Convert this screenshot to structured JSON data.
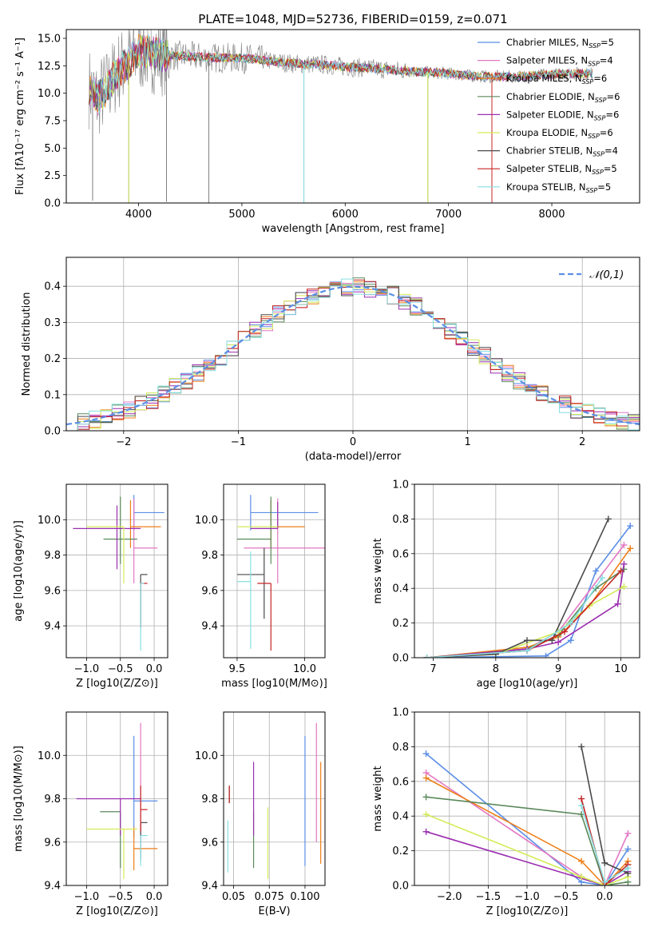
{
  "figure": {
    "title": "PLATE=1048, MJD=52736, FIBERID=0159, z=0.071"
  },
  "colors": {
    "Chabrier MILES": "#5b8ee6",
    "Salpeter MILES": "#e377c2",
    "Kroupa MILES": "#ee7f1a",
    "Chabrier ELODIE": "#5b8a5b",
    "Salpeter ELODIE": "#9b2db0",
    "Kroupa ELODIE": "#d4ec58",
    "Chabrier STELIB": "#4a4a4a",
    "Salpeter STELIB": "#c62424",
    "Kroupa STELIB": "#86dfe2",
    "data": "#808080"
  },
  "chart_data": [
    {
      "id": "spectrum",
      "type": "line",
      "title": "PLATE=1048, MJD=52736, FIBERID=0159, z=0.071",
      "xlabel": "wavelength [Angstrom, rest frame]",
      "ylabel": "Flux [fλ10⁻¹⁷ erg cm⁻² s⁻¹ A⁻¹]",
      "xlim": [
        3300,
        8850
      ],
      "ylim": [
        0,
        15.8
      ],
      "xticks": [
        4000,
        5000,
        6000,
        7000,
        8000
      ],
      "yticks": [
        0.0,
        2.5,
        5.0,
        7.5,
        10.0,
        12.5,
        15.0
      ],
      "legend_position": "top-right",
      "legend": [
        "Chabrier MILES, N_SSP=5",
        "Salpeter MILES, N_SSP=4",
        "Kroupa MILES, N_SSP=6",
        "Chabrier ELODIE, N_SSP=6",
        "Salpeter ELODIE, N_SSP=6",
        "Kroupa ELODIE, N_SSP=6",
        "Chabrier STELIB, N_SSP=4",
        "Salpeter STELIB, N_SSP=5",
        "Kroupa STELIB, N_SSP=5"
      ],
      "continuum": {
        "x": [
          3520,
          3600,
          3700,
          3800,
          3900,
          4000,
          4100,
          4200,
          4400,
          4600,
          4800,
          5000,
          5200,
          5500,
          5800,
          6000,
          6200,
          6500,
          6800,
          7000,
          7200,
          7400,
          7600,
          7800,
          8000,
          8200,
          8400
        ],
        "y": [
          10.5,
          9.5,
          10.5,
          12.0,
          12.8,
          13.8,
          13.8,
          13.5,
          13.4,
          13.3,
          13.2,
          13.2,
          13.0,
          12.7,
          12.6,
          12.4,
          12.3,
          12.1,
          11.9,
          11.8,
          11.6,
          11.5,
          11.5,
          11.6,
          11.7,
          11.8,
          11.8
        ]
      },
      "dips": [
        {
          "x": 3555,
          "y": 0.2
        },
        {
          "x": 3905,
          "y": 0.0
        },
        {
          "x": 4270,
          "y": 0.1
        },
        {
          "x": 4680,
          "y": 0.0
        },
        {
          "x": 5600,
          "y": 0.1
        },
        {
          "x": 6800,
          "y": 0.1
        },
        {
          "x": 7420,
          "y": 0.0
        }
      ]
    },
    {
      "id": "residuals",
      "type": "histogram",
      "xlabel": "(data-model)/error",
      "ylabel": "Normed distribution",
      "xlim": [
        -2.5,
        2.5
      ],
      "ylim": [
        0,
        0.48
      ],
      "xticks": [
        -2,
        -1,
        0,
        1,
        2
      ],
      "yticks": [
        0.0,
        0.1,
        0.2,
        0.3,
        0.4
      ],
      "legend": [
        "𝒩(0,1)"
      ],
      "legend_position": "top-right",
      "reference_curve": "normal(0,1)"
    },
    {
      "id": "age-vs-z",
      "type": "errorbar",
      "xlabel": "Z [log10(Z/Z⊙)]",
      "ylabel": "age  [log10(age/yr)]",
      "xlim": [
        -1.3,
        0.2
      ],
      "ylim": [
        9.22,
        10.2
      ],
      "xticks": [
        -1.0,
        -0.5,
        0.0
      ],
      "yticks": [
        9.4,
        9.6,
        9.8,
        10.0
      ],
      "points": [
        {
          "model": "Chabrier MILES",
          "x": -0.3,
          "xerr": [
            0.0,
            0.45
          ],
          "y": 10.04,
          "yerr": [
            0.1,
            0.1
          ]
        },
        {
          "model": "Salpeter MILES",
          "x": -0.3,
          "xerr": [
            0.0,
            0.35
          ],
          "y": 9.84,
          "yerr": [
            0.2,
            0.28
          ]
        },
        {
          "model": "Kroupa MILES",
          "x": -0.35,
          "xerr": [
            0.0,
            0.45
          ],
          "y": 9.96,
          "yerr": [
            0.12,
            0.15
          ]
        },
        {
          "model": "Chabrier ELODIE",
          "x": -0.5,
          "xerr": [
            0.25,
            0.25
          ],
          "y": 9.89,
          "yerr": [
            0.14,
            0.24
          ]
        },
        {
          "model": "Salpeter ELODIE",
          "x": -0.55,
          "xerr": [
            0.65,
            0.35
          ],
          "y": 9.95,
          "yerr": [
            0.23,
            0.13
          ]
        },
        {
          "model": "Kroupa ELODIE",
          "x": -0.45,
          "xerr": [
            0.55,
            0.0
          ],
          "y": 9.96,
          "yerr": [
            0.32,
            0.0
          ]
        },
        {
          "model": "Chabrier STELIB",
          "x": -0.2,
          "xerr": [
            0.0,
            0.1
          ],
          "y": 9.69,
          "yerr": [
            0.3,
            0.0
          ]
        },
        {
          "model": "Salpeter STELIB",
          "x": -0.2,
          "xerr": [
            0.0,
            0.1
          ],
          "y": 9.64,
          "yerr": [
            0.25,
            0.0
          ]
        },
        {
          "model": "Kroupa STELIB",
          "x": -0.2,
          "xerr": [
            0.0,
            0.05
          ],
          "y": 9.64,
          "yerr": [
            0.38,
            0.0
          ]
        }
      ]
    },
    {
      "id": "age-vs-mass",
      "type": "errorbar",
      "xlabel": "mass [log10(M/M⊙)]",
      "ylabel": "",
      "xlim": [
        9.4,
        10.15
      ],
      "ylim": [
        9.22,
        10.2
      ],
      "xticks": [
        9.5,
        10.0
      ],
      "yticks": [
        9.4,
        9.6,
        9.8,
        10.0
      ],
      "points": [
        {
          "model": "Chabrier MILES",
          "x": 9.6,
          "xerr": [
            0.0,
            0.5
          ],
          "y": 10.04,
          "yerr": [
            0.1,
            0.1
          ]
        },
        {
          "model": "Salpeter MILES",
          "x": 9.8,
          "xerr": [
            0.25,
            0.35
          ],
          "y": 9.84,
          "yerr": [
            0.2,
            0.28
          ]
        },
        {
          "model": "Kroupa MILES",
          "x": 9.75,
          "xerr": [
            0.0,
            0.25
          ],
          "y": 9.96,
          "yerr": [
            0.12,
            0.15
          ]
        },
        {
          "model": "Chabrier ELODIE",
          "x": 9.75,
          "xerr": [
            0.25,
            0.0
          ],
          "y": 9.89,
          "yerr": [
            0.14,
            0.24
          ]
        },
        {
          "model": "Salpeter ELODIE",
          "x": 9.8,
          "xerr": [
            0.2,
            0.0
          ],
          "y": 9.95,
          "yerr": [
            0.0,
            0.15
          ]
        },
        {
          "model": "Kroupa ELODIE",
          "x": 9.5,
          "xerr": [
            0.0,
            0.3
          ],
          "y": 9.96,
          "yerr": [
            0.0,
            0.0
          ]
        },
        {
          "model": "Chabrier STELIB",
          "x": 9.7,
          "xerr": [
            0.2,
            0.0
          ],
          "y": 9.69,
          "yerr": [
            0.25,
            0.15
          ]
        },
        {
          "model": "Salpeter STELIB",
          "x": 9.75,
          "xerr": [
            0.1,
            0.0
          ],
          "y": 9.64,
          "yerr": [
            0.38,
            0.0
          ]
        },
        {
          "model": "Kroupa STELIB",
          "x": 9.6,
          "xerr": [
            0.1,
            0.0
          ],
          "y": 9.65,
          "yerr": [
            0.38,
            0.17
          ]
        }
      ]
    },
    {
      "id": "massweight-vs-age",
      "type": "line",
      "xlabel": "age  [log10(age/yr)]",
      "ylabel": "mass weight",
      "xlim": [
        6.7,
        10.3
      ],
      "ylim": [
        0.0,
        1.0
      ],
      "xticks": [
        7,
        8,
        9,
        10
      ],
      "yticks": [
        0.0,
        0.2,
        0.4,
        0.6,
        0.8,
        1.0
      ],
      "series": [
        {
          "model": "Chabrier MILES",
          "x": [
            6.9,
            8.8,
            9.2,
            9.6,
            10.15
          ],
          "y": [
            0.0,
            0.01,
            0.1,
            0.5,
            0.76
          ]
        },
        {
          "model": "Salpeter MILES",
          "x": [
            6.9,
            8.5,
            9.0,
            10.05
          ],
          "y": [
            0.0,
            0.05,
            0.15,
            0.65
          ]
        },
        {
          "model": "Kroupa MILES",
          "x": [
            6.9,
            8.5,
            9.0,
            9.5,
            10.15
          ],
          "y": [
            0.0,
            0.06,
            0.12,
            0.3,
            0.63
          ]
        },
        {
          "model": "Chabrier ELODIE",
          "x": [
            6.9,
            8.5,
            9.0,
            9.6,
            10.05
          ],
          "y": [
            0.0,
            0.05,
            0.13,
            0.4,
            0.51
          ]
        },
        {
          "model": "Salpeter ELODIE",
          "x": [
            6.9,
            8.5,
            9.0,
            9.95,
            10.05
          ],
          "y": [
            0.0,
            0.05,
            0.09,
            0.31,
            0.54
          ]
        },
        {
          "model": "Kroupa ELODIE",
          "x": [
            6.9,
            8.0,
            9.0,
            9.5,
            10.05
          ],
          "y": [
            0.0,
            0.02,
            0.15,
            0.3,
            0.41
          ]
        },
        {
          "model": "Chabrier STELIB",
          "x": [
            6.9,
            8.0,
            8.5,
            8.9,
            9.8
          ],
          "y": [
            0.0,
            0.02,
            0.1,
            0.1,
            0.8
          ]
        },
        {
          "model": "Salpeter STELIB",
          "x": [
            6.9,
            8.5,
            9.1,
            10.0
          ],
          "y": [
            0.0,
            0.04,
            0.15,
            0.5
          ]
        },
        {
          "model": "Kroupa STELIB",
          "x": [
            6.9,
            8.5,
            9.2,
            9.7
          ],
          "y": [
            0.0,
            0.04,
            0.2,
            0.46
          ]
        }
      ]
    },
    {
      "id": "mass-vs-z",
      "type": "errorbar",
      "xlabel": "Z [log10(Z/Z⊙)]",
      "ylabel": "mass [log10(M/M⊙)]",
      "xlim": [
        -1.3,
        0.2
      ],
      "ylim": [
        9.4,
        10.2
      ],
      "xticks": [
        -1.0,
        -0.5,
        0.0
      ],
      "yticks": [
        9.4,
        9.6,
        9.8,
        10.0
      ],
      "points": [
        {
          "model": "Chabrier MILES",
          "x": -0.3,
          "xerr": [
            0.0,
            0.35
          ],
          "y": 9.79,
          "yerr": [
            0.17,
            0.3
          ]
        },
        {
          "model": "Salpeter MILES",
          "x": -0.2,
          "xerr": [
            0.0,
            0.0
          ],
          "y": 9.8,
          "yerr": [
            0.2,
            0.35
          ]
        },
        {
          "model": "Kroupa MILES",
          "x": -0.3,
          "xerr": [
            0.0,
            0.35
          ],
          "y": 9.57,
          "yerr": [
            0.1,
            0.1
          ]
        },
        {
          "model": "Chabrier ELODIE",
          "x": -0.5,
          "xerr": [
            0.3,
            0.0
          ],
          "y": 9.74,
          "yerr": [
            0.26,
            0.0
          ]
        },
        {
          "model": "Salpeter ELODIE",
          "x": -0.5,
          "xerr": [
            0.65,
            0.3
          ],
          "y": 9.8,
          "yerr": [
            0.17,
            0.0
          ]
        },
        {
          "model": "Kroupa ELODIE",
          "x": -0.45,
          "xerr": [
            0.55,
            0.2
          ],
          "y": 9.66,
          "yerr": [
            0.23,
            0.0
          ]
        },
        {
          "model": "Chabrier STELIB",
          "x": -0.2,
          "xerr": [
            0.0,
            0.1
          ],
          "y": 9.69,
          "yerr": [
            0.17,
            0.0
          ]
        },
        {
          "model": "Salpeter STELIB",
          "x": -0.2,
          "xerr": [
            0.0,
            0.1
          ],
          "y": 9.75,
          "yerr": [
            0.1,
            0.11
          ]
        },
        {
          "model": "Kroupa STELIB",
          "x": -0.2,
          "xerr": [
            0.0,
            0.1
          ],
          "y": 9.63,
          "yerr": [
            0.14,
            0.0
          ]
        }
      ]
    },
    {
      "id": "mass-vs-ebv",
      "type": "errorbar",
      "xlabel": "E(B-V)",
      "ylabel": "",
      "xlim": [
        0.043,
        0.114
      ],
      "ylim": [
        9.4,
        10.2
      ],
      "xticks": [
        0.05,
        0.075,
        0.1
      ],
      "yticks": [
        9.4,
        9.6,
        9.8,
        10.0
      ],
      "points": [
        {
          "model": "Chabrier MILES",
          "x": 0.1,
          "y": 9.79,
          "yerr": [
            0.3,
            0.3
          ]
        },
        {
          "model": "Salpeter MILES",
          "x": 0.108,
          "y": 9.8,
          "yerr": [
            0.2,
            0.35
          ]
        },
        {
          "model": "Kroupa MILES",
          "x": 0.111,
          "y": 9.7,
          "yerr": [
            0.2,
            0.27
          ]
        },
        {
          "model": "Chabrier ELODIE",
          "x": 0.064,
          "y": 9.74,
          "yerr": [
            0.26,
            0.0
          ]
        },
        {
          "model": "Salpeter ELODIE",
          "x": 0.064,
          "y": 9.8,
          "yerr": [
            0.17,
            0.17
          ]
        },
        {
          "model": "Kroupa ELODIE",
          "x": 0.074,
          "y": 9.6,
          "yerr": [
            0.17,
            0.16
          ]
        },
        {
          "model": "Chabrier STELIB",
          "x": 0.047,
          "y": 9.8,
          "yerr": [
            0.02,
            0.06
          ]
        },
        {
          "model": "Salpeter STELIB",
          "x": 0.047,
          "y": 9.8,
          "yerr": [
            0.02,
            0.06
          ]
        },
        {
          "model": "Kroupa STELIB",
          "x": 0.046,
          "y": 9.7,
          "yerr": [
            0.24,
            0.0
          ]
        }
      ]
    },
    {
      "id": "massweight-vs-z",
      "type": "line",
      "xlabel": "Z [log10(Z/Z⊙)]",
      "ylabel": "mass weight",
      "xlim": [
        -2.45,
        0.45
      ],
      "ylim": [
        0.0,
        1.0
      ],
      "xticks": [
        -2.0,
        -1.5,
        -1.0,
        -0.5,
        0.0
      ],
      "yticks": [
        0.0,
        0.2,
        0.4,
        0.6,
        0.8,
        1.0
      ],
      "series": [
        {
          "model": "Chabrier MILES",
          "x": [
            -2.3,
            -0.3,
            0.0,
            0.3
          ],
          "y": [
            0.76,
            0.02,
            0.0,
            0.21
          ]
        },
        {
          "model": "Salpeter MILES",
          "x": [
            -2.3,
            -0.3,
            0.0,
            0.3
          ],
          "y": [
            0.65,
            0.05,
            0.0,
            0.3
          ]
        },
        {
          "model": "Kroupa MILES",
          "x": [
            -2.3,
            -0.3,
            0.0,
            0.3
          ],
          "y": [
            0.62,
            0.14,
            0.0,
            0.14
          ]
        },
        {
          "model": "Chabrier ELODIE",
          "x": [
            -2.3,
            -0.3,
            0.0,
            0.3
          ],
          "y": [
            0.51,
            0.41,
            0.0,
            0.02
          ]
        },
        {
          "model": "Salpeter ELODIE",
          "x": [
            -2.3,
            0.0,
            0.3
          ],
          "y": [
            0.31,
            0.0,
            0.08
          ]
        },
        {
          "model": "Kroupa ELODIE",
          "x": [
            -2.3,
            -0.3,
            0.0,
            0.3
          ],
          "y": [
            0.41,
            0.05,
            0.0,
            0.05
          ]
        },
        {
          "model": "Chabrier STELIB",
          "x": [
            -0.3,
            0.0,
            0.3
          ],
          "y": [
            0.8,
            0.13,
            0.07
          ]
        },
        {
          "model": "Salpeter STELIB",
          "x": [
            -0.3,
            0.0,
            0.3
          ],
          "y": [
            0.5,
            0.0,
            0.12
          ]
        },
        {
          "model": "Kroupa STELIB",
          "x": [
            -0.3,
            0.0,
            0.3
          ],
          "y": [
            0.46,
            0.02,
            0.1
          ]
        }
      ]
    }
  ]
}
